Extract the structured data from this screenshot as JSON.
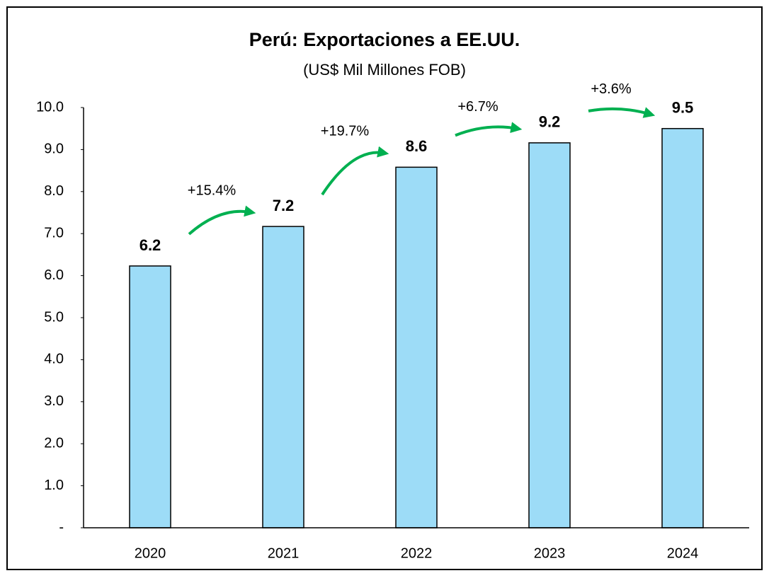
{
  "chart_data": {
    "type": "bar",
    "title": "Perú: Exportaciones a EE.UU.",
    "subtitle": "(US$ Mil Millones FOB)",
    "categories": [
      "2020",
      "2021",
      "2022",
      "2023",
      "2024"
    ],
    "values": [
      6.23,
      7.17,
      8.58,
      9.16,
      9.5
    ],
    "value_labels": [
      "6.2",
      "7.2",
      "8.6",
      "9.2",
      "9.5"
    ],
    "growth_labels": [
      "+15.4%",
      "+19.7%",
      "+6.7%",
      "+3.6%"
    ],
    "color": "#9ddcf7",
    "arrow_color": "#00b050",
    "ylim": [
      0,
      10
    ],
    "yticks": [
      {
        "value": 0,
        "label": "-"
      },
      {
        "value": 1,
        "label": "1.0"
      },
      {
        "value": 2,
        "label": "2.0"
      },
      {
        "value": 3,
        "label": "3.0"
      },
      {
        "value": 4,
        "label": "4.0"
      },
      {
        "value": 5,
        "label": "5.0"
      },
      {
        "value": 6,
        "label": "6.0"
      },
      {
        "value": 7,
        "label": "7.0"
      },
      {
        "value": 8,
        "label": "8.0"
      },
      {
        "value": 9,
        "label": "9.0"
      },
      {
        "value": 10,
        "label": "10.0"
      }
    ],
    "grid": false
  }
}
